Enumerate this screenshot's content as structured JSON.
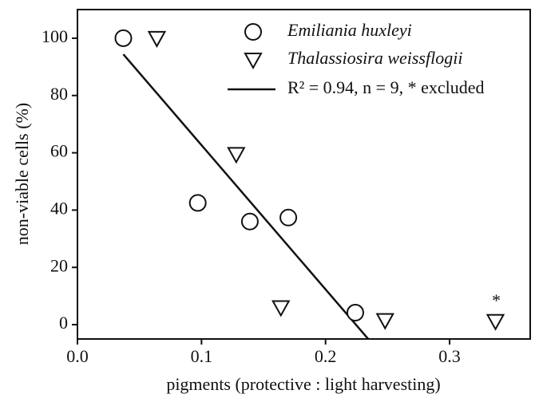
{
  "chart_data": {
    "type": "scatter",
    "y_label": "non-viable cells (%)",
    "x_label": "pigments (protective : light harvesting)",
    "xlim": [
      0,
      0.365
    ],
    "ylim": [
      -5,
      110
    ],
    "xticks": [
      {
        "value": 0,
        "label": "0.0"
      },
      0.1,
      0.2,
      0.3
    ],
    "yticks": [
      0,
      20,
      40,
      60,
      80,
      100
    ],
    "series": [
      {
        "name": "Emiliania huxleyi",
        "marker": "circle",
        "color": "#111111",
        "x": [
          0.037,
          0.097,
          0.139,
          0.17,
          0.224
        ],
        "values": [
          100,
          42.5,
          36,
          37.4,
          4.2
        ]
      },
      {
        "name": "Thalassiosira weissflogii",
        "marker": "triangle-down",
        "color": "#111111",
        "x": [
          0.064,
          0.128,
          0.164,
          0.248,
          0.337
        ],
        "values": [
          100,
          59.5,
          6,
          1.5,
          1.2
        ]
      }
    ],
    "fit_line": {
      "name": "R² = 0.94, n = 9, * excluded",
      "color": "#111111",
      "x": [
        0.037,
        0.235
      ],
      "values": [
        94.4,
        -5.3
      ]
    },
    "annotation": "*"
  }
}
